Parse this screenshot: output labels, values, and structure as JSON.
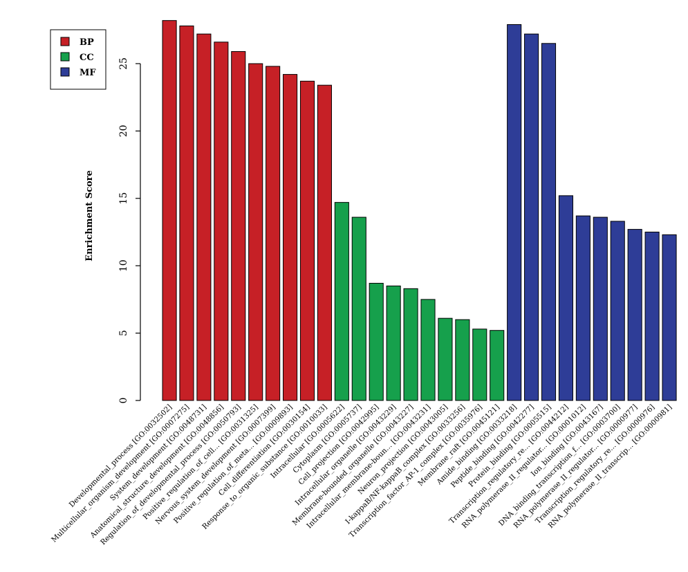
{
  "chart_data": {
    "type": "bar",
    "ylabel": "Enrichment Score",
    "xlabel": "",
    "title": "",
    "ylim": [
      0,
      28.5
    ],
    "yticks": [
      0,
      5,
      10,
      15,
      20,
      25
    ],
    "grid": false,
    "legend_position": "top-left",
    "legend": [
      {
        "label": "BP",
        "color": "#c62026"
      },
      {
        "label": "CC",
        "color": "#16a04c"
      },
      {
        "label": "MF",
        "color": "#2e3d97"
      }
    ],
    "categories": [
      "Developmental_process [GO:0032502]",
      "Multicellular_organism_development [GO:0007275]",
      "System_development [GO:0048731]",
      "Anatomical_structure_development [GO:0048856]",
      "Regulation_of_developmental_process [GO:0050793]",
      "Positive_regulation_of_cell... [GO:0031325]",
      "Nervous_system_development [GO:0007399]",
      "Positive_regulation_of_meta... [GO:0009893]",
      "Cell_differentiation [GO:0030154]",
      "Response_to_organic_substance [GO:0010033]",
      "Intracellular [GO:0005622]",
      "Cytoplasm [GO:0005737]",
      "Cell_projection [GO:0042995]",
      "Intracellular_organelle [GO:0043229]",
      "Membrane-bounded_organelle [GO:0043227]",
      "Intracellular_membrane-boun... [GO:0043231]",
      "Neuron_projection [GO:0043005]",
      "I-kappaB/NF-kappaB_complex [GO:0033256]",
      "Transcription_factor_AP-1_complex [GO:0035976]",
      "Membrane_raft [GO:0045121]",
      "Amide_binding [GO:0033218]",
      "Peptide_binding [GO:0042277]",
      "Protein_binding [GO:0005515]",
      "Transcription_regulatory_re... [GO:0044212]",
      "RNA_polymerase_II_regulator... [GO:0001012]",
      "Ion_binding [GO:0043167]",
      "DNA_binding_transcription_f... [GO:0003700]",
      "RNA_polymerase_II_regulator... [GO:0000977]",
      "Transcription_regulatory_re... [GO:0000976]",
      "RNA_polymerase_II_transcrip... [GO:0000981]"
    ],
    "groups": [
      "BP",
      "BP",
      "BP",
      "BP",
      "BP",
      "BP",
      "BP",
      "BP",
      "BP",
      "BP",
      "CC",
      "CC",
      "CC",
      "CC",
      "CC",
      "CC",
      "CC",
      "CC",
      "CC",
      "CC",
      "MF",
      "MF",
      "MF",
      "MF",
      "MF",
      "MF",
      "MF",
      "MF",
      "MF",
      "MF"
    ],
    "values": [
      28.2,
      27.8,
      27.2,
      26.6,
      25.9,
      25.0,
      24.8,
      24.2,
      23.7,
      23.4,
      14.7,
      13.6,
      8.7,
      8.5,
      8.3,
      7.5,
      6.1,
      6.0,
      5.3,
      5.2,
      27.9,
      27.2,
      26.5,
      15.2,
      13.7,
      13.6,
      13.3,
      12.7,
      12.5,
      12.3
    ]
  }
}
